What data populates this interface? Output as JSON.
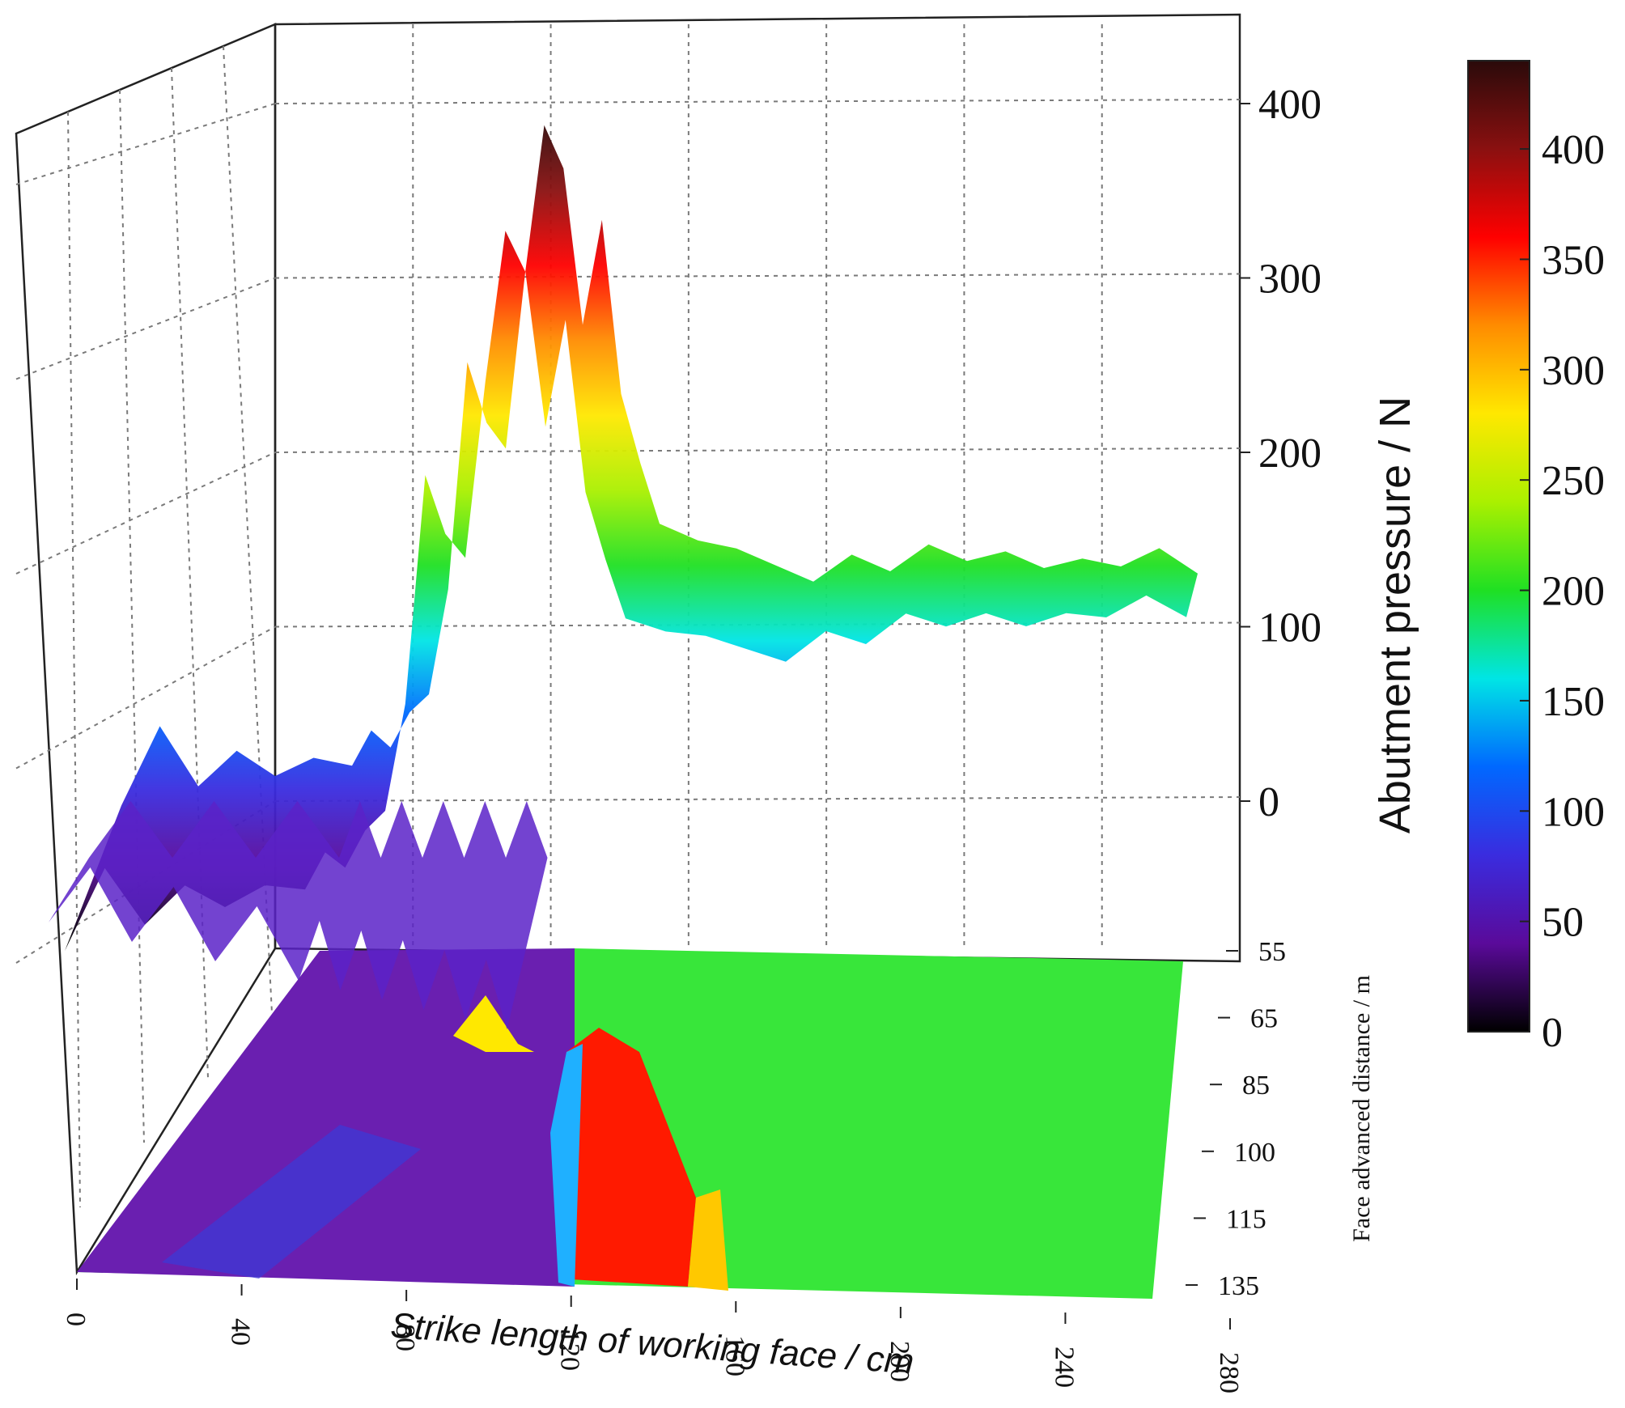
{
  "chart_data": {
    "type": "surface3d",
    "xlabel": "Strike length of working face / cm",
    "ylabel": "Face advanced distance / m",
    "zlabel": "Abutment pressure / N",
    "x_ticks": [
      "0",
      "40",
      "80",
      "120",
      "160",
      "200",
      "240",
      "280"
    ],
    "y_ticks": [
      "55",
      "65",
      "85",
      "100",
      "115",
      "135"
    ],
    "z_ticks": [
      "0",
      "100",
      "200",
      "300",
      "400"
    ],
    "colorbar_ticks": [
      "0",
      "50",
      "100",
      "150",
      "200",
      "250",
      "300",
      "350",
      "400"
    ],
    "xlim": [
      0,
      280
    ],
    "ylim": [
      55,
      135
    ],
    "zlim": [
      -100,
      450
    ],
    "colorbar_range": [
      0,
      440
    ],
    "colormap": [
      "#000000",
      "#5a0a9a",
      "#3a2cdf",
      "#0068ff",
      "#00e5e5",
      "#1fe023",
      "#aaf000",
      "#ffe800",
      "#ff8c00",
      "#ff0000",
      "#8a1010",
      "#2a0a0a"
    ],
    "series": [
      {
        "x": [
          0,
          10,
          20,
          30,
          40,
          50,
          60,
          65,
          70,
          75,
          80,
          85,
          90,
          95,
          100,
          105,
          110,
          115,
          120,
          125,
          130,
          135,
          140,
          150,
          160,
          170,
          180,
          190,
          200,
          210,
          220,
          230,
          240,
          250,
          260,
          270,
          280
        ],
        "z": [
          30,
          75,
          40,
          60,
          45,
          55,
          50,
          70,
          60,
          80,
          90,
          150,
          280,
          245,
          230,
          330,
          415,
          390,
          300,
          360,
          260,
          220,
          185,
          175,
          170,
          160,
          150,
          165,
          155,
          170,
          160,
          165,
          155,
          160,
          155,
          165,
          150
        ]
      }
    ]
  }
}
